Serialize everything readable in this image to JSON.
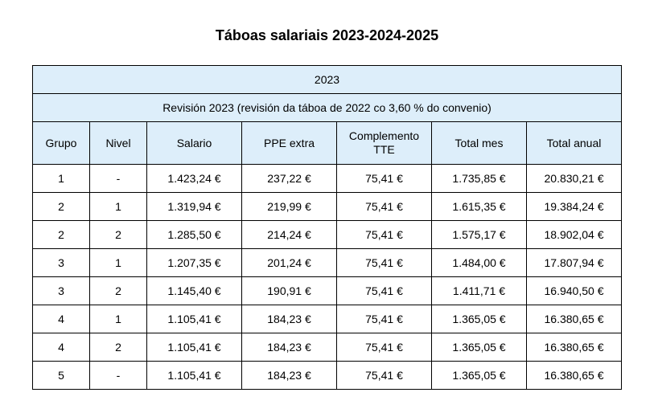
{
  "title": "Táboas salariais 2023-2024-2025",
  "table": {
    "year_label": "2023",
    "revision_label": "Revisión 2023 (revisión da táboa de 2022 co 3,60 % do convenio)",
    "headers": [
      "Grupo",
      "Nivel",
      "Salario",
      "PPE extra",
      "Complemento TTE",
      "Total mes",
      "Total anual"
    ],
    "rows": [
      [
        "1",
        "-",
        "1.423,24 €",
        "237,22 €",
        "75,41 €",
        "1.735,85 €",
        "20.830,21 €"
      ],
      [
        "2",
        "1",
        "1.319,94 €",
        "219,99 €",
        "75,41 €",
        "1.615,35 €",
        "19.384,24 €"
      ],
      [
        "2",
        "2",
        "1.285,50 €",
        "214,24 €",
        "75,41 €",
        "1.575,17 €",
        "18.902,04 €"
      ],
      [
        "3",
        "1",
        "1.207,35 €",
        "201,24 €",
        "75,41 €",
        "1.484,00 €",
        "17.807,94 €"
      ],
      [
        "3",
        "2",
        "1.145,40 €",
        "190,91 €",
        "75,41 €",
        "1.411,71 €",
        "16.940,50 €"
      ],
      [
        "4",
        "1",
        "1.105,41 €",
        "184,23 €",
        "75,41 €",
        "1.365,05 €",
        "16.380,65 €"
      ],
      [
        "4",
        "2",
        "1.105,41 €",
        "184,23 €",
        "75,41 €",
        "1.365,05 €",
        "16.380,65 €"
      ],
      [
        "5",
        "-",
        "1.105,41 €",
        "184,23 €",
        "75,41 €",
        "1.365,05 €",
        "16.380,65 €"
      ]
    ]
  },
  "colors": {
    "header_background": "#ddeefa",
    "border": "#000000",
    "text": "#000000"
  }
}
